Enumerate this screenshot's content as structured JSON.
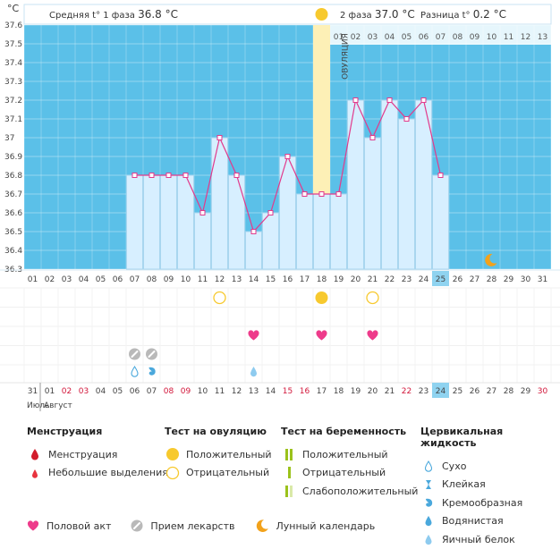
{
  "header": {
    "unit": "°C",
    "phase1_label": "Средняя t° 1 фаза",
    "phase1_value": "36.8 °C",
    "phase2_label": "2 фаза",
    "phase2_value": "37.0 °C",
    "diff_label": "Разница t°",
    "diff_value": "0.2 °C",
    "ovulation_label": "ОВУЛЯЦИЯ"
  },
  "chart_data": {
    "type": "line",
    "title": "",
    "ylabel": "°C",
    "ylim": [
      36.3,
      37.6
    ],
    "y_ticks": [
      "37.6",
      "37.5",
      "37.4",
      "37.3",
      "37.2",
      "37.1",
      "37",
      "36.9",
      "36.8",
      "36.7",
      "36.6",
      "36.5",
      "36.4",
      "36.3"
    ],
    "cycle_days": [
      "01",
      "02",
      "03",
      "04",
      "05",
      "06",
      "07",
      "08",
      "09",
      "10",
      "11",
      "12",
      "13",
      "14",
      "15",
      "16",
      "17",
      "18",
      "19",
      "20",
      "21",
      "22",
      "23",
      "24",
      "25",
      "26",
      "27",
      "28",
      "29",
      "30",
      "31"
    ],
    "temperatures": [
      null,
      null,
      null,
      null,
      null,
      null,
      36.8,
      36.8,
      36.8,
      36.8,
      36.6,
      37.0,
      36.8,
      36.5,
      36.6,
      36.9,
      36.7,
      36.7,
      36.7,
      37.2,
      37.0,
      37.2,
      37.1,
      37.2,
      36.8,
      null,
      null,
      null,
      null,
      null,
      null
    ],
    "ovulation_day": 18,
    "current_day": 25,
    "phase2_day_labels": [
      "01",
      "02",
      "03",
      "04",
      "05",
      "06",
      "07",
      "08",
      "09",
      "10",
      "11",
      "12",
      "13"
    ],
    "phase2_start_day": 19,
    "moon_day": 28,
    "ovulation_tests": [
      {
        "day": 12,
        "result": "negative"
      },
      {
        "day": 18,
        "result": "positive"
      },
      {
        "day": 21,
        "result": "negative"
      }
    ],
    "sex_days": [
      14,
      18,
      21
    ],
    "medicine_days": [
      7,
      8
    ],
    "fluid": [
      {
        "day": 7,
        "type": "dry"
      },
      {
        "day": 8,
        "type": "creamy"
      },
      {
        "day": 14,
        "type": "eggwhite"
      }
    ],
    "calendar_dates": [
      "31",
      "01",
      "02",
      "03",
      "04",
      "05",
      "06",
      "07",
      "08",
      "09",
      "10",
      "11",
      "12",
      "13",
      "14",
      "15",
      "16",
      "17",
      "18",
      "19",
      "20",
      "21",
      "22",
      "23",
      "24",
      "25",
      "26",
      "27",
      "28",
      "29",
      "30"
    ],
    "calendar_red": [
      false,
      false,
      true,
      true,
      false,
      false,
      false,
      false,
      true,
      true,
      false,
      false,
      false,
      false,
      false,
      true,
      true,
      false,
      false,
      false,
      false,
      false,
      true,
      false,
      false,
      false,
      false,
      false,
      false,
      false,
      true
    ],
    "month_labels": [
      "Июль",
      "Август"
    ]
  },
  "legend": {
    "menstruation": {
      "title": "Менструация",
      "items": [
        {
          "label": "Менструация",
          "icon": "drop-dark-red-icon"
        },
        {
          "label": "Небольшие выделения",
          "icon": "drop-red-icon"
        }
      ]
    },
    "ovulation_test": {
      "title": "Тест на овуляцию",
      "items": [
        {
          "label": "Положительный",
          "icon": "sun-filled-icon"
        },
        {
          "label": "Отрицательный",
          "icon": "sun-outline-icon"
        }
      ]
    },
    "pregnancy_test": {
      "title": "Тест на беременность",
      "items": [
        {
          "label": "Положительный",
          "icon": "double-bar-icon"
        },
        {
          "label": "Отрицательный",
          "icon": "single-bar-icon"
        },
        {
          "label": "Слабоположительный",
          "icon": "faint-bar-icon"
        }
      ]
    },
    "cervical_fluid": {
      "title": "Цервикальная жидкость",
      "items": [
        {
          "label": "Сухо",
          "icon": "drop-outline-icon"
        },
        {
          "label": "Клейкая",
          "icon": "sticky-icon"
        },
        {
          "label": "Кремообразная",
          "icon": "creamy-icon"
        },
        {
          "label": "Водянистая",
          "icon": "watery-icon"
        },
        {
          "label": "Яичный белок",
          "icon": "eggwhite-icon"
        }
      ]
    },
    "bottom": [
      {
        "label": "Половой акт",
        "icon": "heart-icon"
      },
      {
        "label": "Прием лекарств",
        "icon": "pill-icon"
      },
      {
        "label": "Лунный календарь",
        "icon": "moon-icon"
      }
    ]
  },
  "colors": {
    "plot_bg": "#5bc0e8",
    "bar_fill": "#d7efff",
    "bar_stroke": "#a9d6ef",
    "line": "#e23a8c",
    "ovulation_band": "#fdf0b6",
    "sun": "#f7c92e",
    "heart": "#ee3b8b",
    "current_day_bg": "#8fd3f0"
  }
}
